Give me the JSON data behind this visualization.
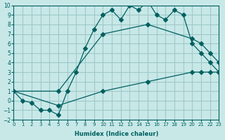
{
  "xlabel": "Humidex (Indice chaleur)",
  "bg_color": "#c8e8e8",
  "grid_color": "#a0c8c8",
  "line_color": "#006060",
  "xlim": [
    0,
    23
  ],
  "ylim": [
    -2,
    10
  ],
  "xticks": [
    0,
    1,
    2,
    3,
    4,
    5,
    6,
    7,
    8,
    9,
    10,
    11,
    12,
    13,
    14,
    15,
    16,
    17,
    18,
    19,
    20,
    21,
    22,
    23
  ],
  "yticks": [
    -2,
    -1,
    0,
    1,
    2,
    3,
    4,
    5,
    6,
    7,
    8,
    9,
    10
  ],
  "main_x": [
    0,
    1,
    2,
    3,
    4,
    5,
    6,
    7,
    8,
    9,
    10,
    11,
    12,
    13,
    14,
    15,
    16,
    17,
    18,
    19,
    20,
    21,
    22,
    23
  ],
  "main_y": [
    1,
    0,
    -0.2,
    -1,
    -1,
    -1.5,
    1,
    3,
    5.5,
    7.5,
    9,
    9.5,
    8.5,
    10,
    9.5,
    10.5,
    9,
    8.5,
    9.5,
    9,
    6,
    5,
    4,
    3
  ],
  "upper_x": [
    0,
    5,
    10,
    15,
    20,
    21,
    22,
    23
  ],
  "upper_y": [
    1,
    1,
    7,
    8,
    6.5,
    6,
    5,
    4
  ],
  "lower_x": [
    0,
    5,
    10,
    15,
    20,
    21,
    22,
    23
  ],
  "lower_y": [
    1,
    -0.5,
    1,
    2,
    3,
    3,
    3,
    3
  ],
  "marker_size": 4
}
